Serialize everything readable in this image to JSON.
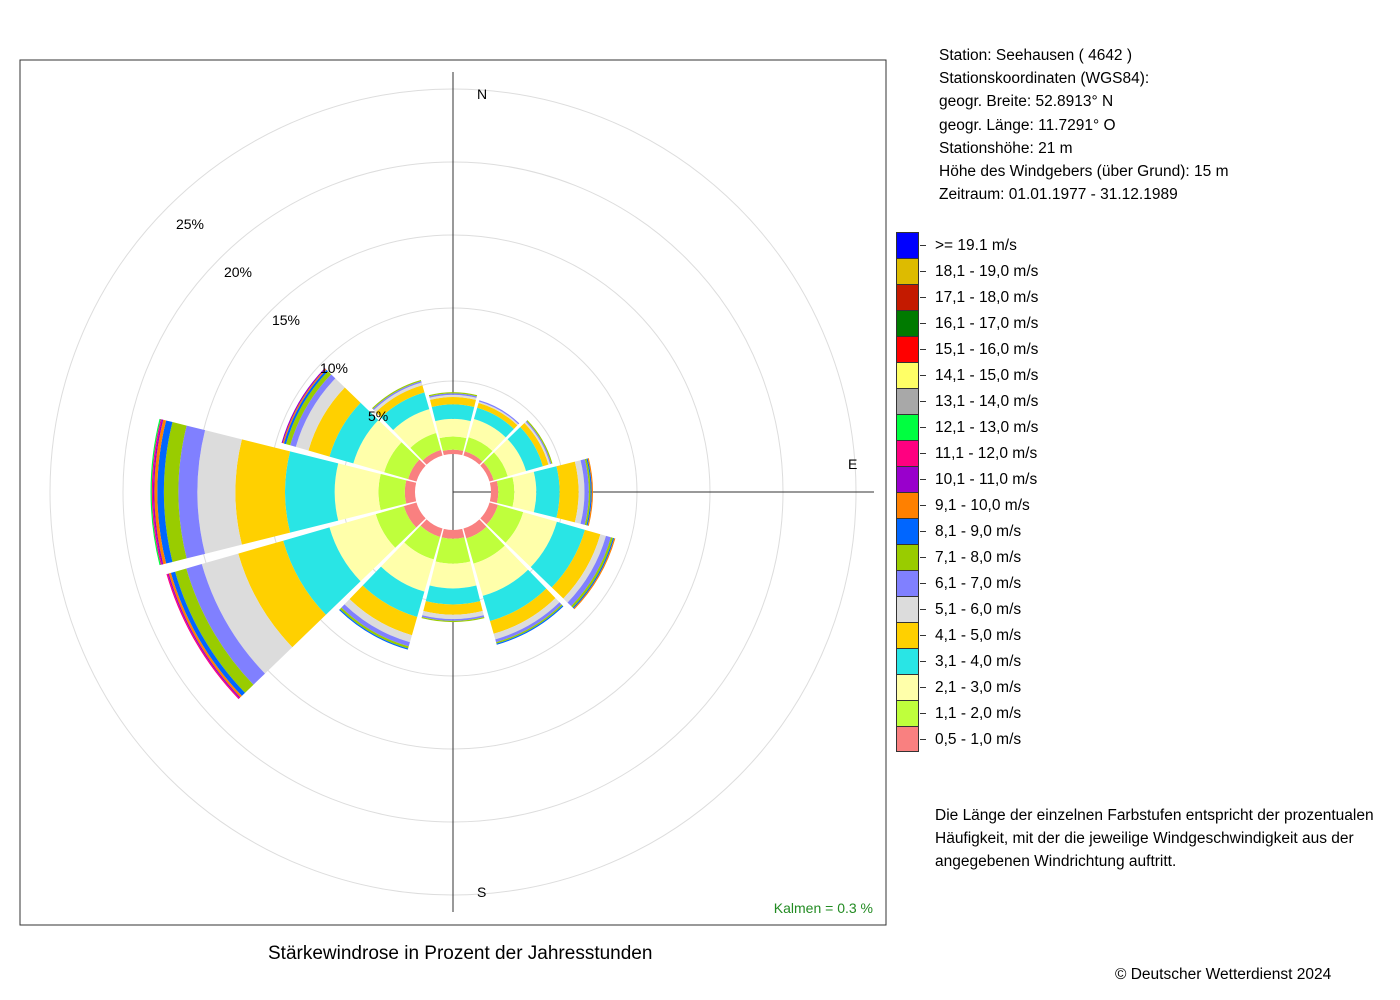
{
  "chart_data": {
    "type": "windrose",
    "title": "Stärkewindrose in Prozent der Jahresstunden",
    "direction_labels": {
      "north": "N",
      "east": "E",
      "south": "S"
    },
    "ring_labels": [
      "5%",
      "10%",
      "15%",
      "20%",
      "25%"
    ],
    "ring_values": [
      5,
      10,
      15,
      20,
      25
    ],
    "calm_text": "Kalmen  =  0.3 %",
    "directions": [
      0,
      30,
      60,
      90,
      120,
      150,
      180,
      210,
      240,
      270,
      300,
      330
    ],
    "speed_classes": [
      {
        "label": "0,5 - 1,0 m/s",
        "color": "#f98080"
      },
      {
        "label": "1,1 - 2,0 m/s",
        "color": "#bfff3c"
      },
      {
        "label": "2,1 - 3,0 m/s",
        "color": "#ffffaa"
      },
      {
        "label": "3,1 - 4,0 m/s",
        "color": "#29e5e5"
      },
      {
        "label": "4,1 - 5,0 m/s",
        "color": "#ffd000"
      },
      {
        "label": "5,1 - 6,0 m/s",
        "color": "#dcdcdc"
      },
      {
        "label": "6,1 - 7,0 m/s",
        "color": "#8080ff"
      },
      {
        "label": "7,1 - 8,0 m/s",
        "color": "#99cc00"
      },
      {
        "label": "8,1 - 9,0 m/s",
        "color": "#0066ff"
      },
      {
        "label": "9,1 - 10,0 m/s",
        "color": "#ff8000"
      },
      {
        "label": "10,1 - 11,0 m/s",
        "color": "#9900cc"
      },
      {
        "label": "11,1 - 12,0 m/s",
        "color": "#ff0080"
      },
      {
        "label": "12,1 - 13,0 m/s",
        "color": "#00ff40"
      },
      {
        "label": "13,1 - 14,0 m/s",
        "color": "#a8a8a8"
      },
      {
        "label": "14,1 - 15,0 m/s",
        "color": "#ffff66"
      },
      {
        "label": "15,1 - 16,0 m/s",
        "color": "#ff0000"
      },
      {
        "label": "16,1 - 17,0 m/s",
        "color": "#007a00"
      },
      {
        "label": "17,1 - 18,0 m/s",
        "color": "#c41a00"
      },
      {
        "label": "18,1 - 19,0 m/s",
        "color": "#ddbb00"
      },
      {
        "label": ">= 19.1 m/s",
        "color": "#0000ff"
      }
    ],
    "series": [
      {
        "direction": 0,
        "values": [
          0.3,
          0.9,
          1.2,
          1.0,
          0.5,
          0.15,
          0.1,
          0.05
        ]
      },
      {
        "direction": 30,
        "values": [
          0.3,
          1.0,
          1.3,
          0.8,
          0.35,
          0.1,
          0.05
        ]
      },
      {
        "direction": 60,
        "values": [
          0.3,
          1.0,
          1.3,
          1.2,
          0.4,
          0.12,
          0.07,
          0.03
        ]
      },
      {
        "direction": 90,
        "values": [
          0.5,
          1.1,
          1.5,
          1.6,
          1.3,
          0.4,
          0.3,
          0.12,
          0.06,
          0.03
        ]
      },
      {
        "direction": 120,
        "values": [
          0.6,
          1.8,
          2.4,
          2.0,
          1.1,
          0.4,
          0.35,
          0.15,
          0.05,
          0.03
        ]
      },
      {
        "direction": 150,
        "values": [
          0.7,
          1.8,
          2.3,
          1.8,
          0.9,
          0.4,
          0.2,
          0.1,
          0.03
        ]
      },
      {
        "direction": 180,
        "values": [
          0.6,
          1.7,
          1.7,
          1.1,
          0.7,
          0.3,
          0.12,
          0.05
        ]
      },
      {
        "direction": 210,
        "values": [
          0.6,
          1.6,
          2.3,
          1.8,
          1.3,
          0.5,
          0.3,
          0.15,
          0.03
        ]
      },
      {
        "direction": 240,
        "values": [
          0.9,
          2.0,
          3.3,
          3.3,
          3.2,
          2.6,
          1.1,
          0.8,
          0.3,
          0.15,
          0.07,
          0.05
        ]
      },
      {
        "direction": 270,
        "values": [
          0.7,
          1.8,
          3.0,
          3.4,
          3.4,
          2.6,
          1.3,
          1.0,
          0.45,
          0.2,
          0.1,
          0.08,
          0.03
        ]
      },
      {
        "direction": 300,
        "values": [
          0.6,
          1.7,
          2.2,
          1.7,
          1.5,
          0.9,
          0.4,
          0.3,
          0.15,
          0.08,
          0.05
        ]
      },
      {
        "direction": 330,
        "values": [
          0.4,
          1.2,
          1.7,
          1.2,
          0.5,
          0.2,
          0.1,
          0.05
        ]
      }
    ]
  },
  "info": {
    "station": "Station:  Seehausen  ( 4642 )",
    "coords_title": "Stationskoordinaten (WGS84):",
    "lat": "geogr. Breite: 52.8913° N",
    "lon": "geogr. Länge: 11.7291° O",
    "height": "Stationshöhe: 21 m",
    "sensor_height": "Höhe des Windgebers (über Grund): 15 m",
    "period": "Zeitraum: 01.01.1977 - 31.12.1989"
  },
  "legend_items": [
    {
      "label": ">= 19.1 m/s",
      "color": "#0000ff"
    },
    {
      "label": "18,1 - 19,0 m/s",
      "color": "#ddbb00"
    },
    {
      "label": "17,1 - 18,0 m/s",
      "color": "#c41a00"
    },
    {
      "label": "16,1 - 17,0 m/s",
      "color": "#007a00"
    },
    {
      "label": "15,1 - 16,0 m/s",
      "color": "#ff0000"
    },
    {
      "label": "14,1 - 15,0 m/s",
      "color": "#ffff66"
    },
    {
      "label": "13,1 - 14,0 m/s",
      "color": "#a8a8a8"
    },
    {
      "label": "12,1 - 13,0 m/s",
      "color": "#00ff40"
    },
    {
      "label": "11,1 - 12,0 m/s",
      "color": "#ff0080"
    },
    {
      "label": "10,1 - 11,0 m/s",
      "color": "#9900cc"
    },
    {
      "label": "9,1 - 10,0 m/s",
      "color": "#ff8000"
    },
    {
      "label": "8,1 - 9,0 m/s",
      "color": "#0066ff"
    },
    {
      "label": "7,1 - 8,0 m/s",
      "color": "#99cc00"
    },
    {
      "label": "6,1 - 7,0 m/s",
      "color": "#8080ff"
    },
    {
      "label": "5,1 - 6,0 m/s",
      "color": "#dcdcdc"
    },
    {
      "label": "4,1 - 5,0 m/s",
      "color": "#ffd000"
    },
    {
      "label": "3,1 - 4,0 m/s",
      "color": "#29e5e5"
    },
    {
      "label": "2,1 - 3,0 m/s",
      "color": "#ffffaa"
    },
    {
      "label": "1,1 - 2,0 m/s",
      "color": "#bfff3c"
    },
    {
      "label": "0,5 - 1,0 m/s",
      "color": "#f98080"
    }
  ],
  "note": {
    "line1": "Die Länge der einzelnen Farbstufen entspricht der prozentualen",
    "line2": "Häufigkeit, mit der die jeweilige Windgeschwindigkeit aus der",
    "line3": "angegebenen Windrichtung auftritt."
  },
  "caption": "Stärkewindrose in Prozent der Jahresstunden",
  "copyright": "© Deutscher Wetterdienst  2024",
  "colors": {
    "calm_text": "#228b22",
    "frame": "#333333",
    "grid": "#dddddd"
  }
}
